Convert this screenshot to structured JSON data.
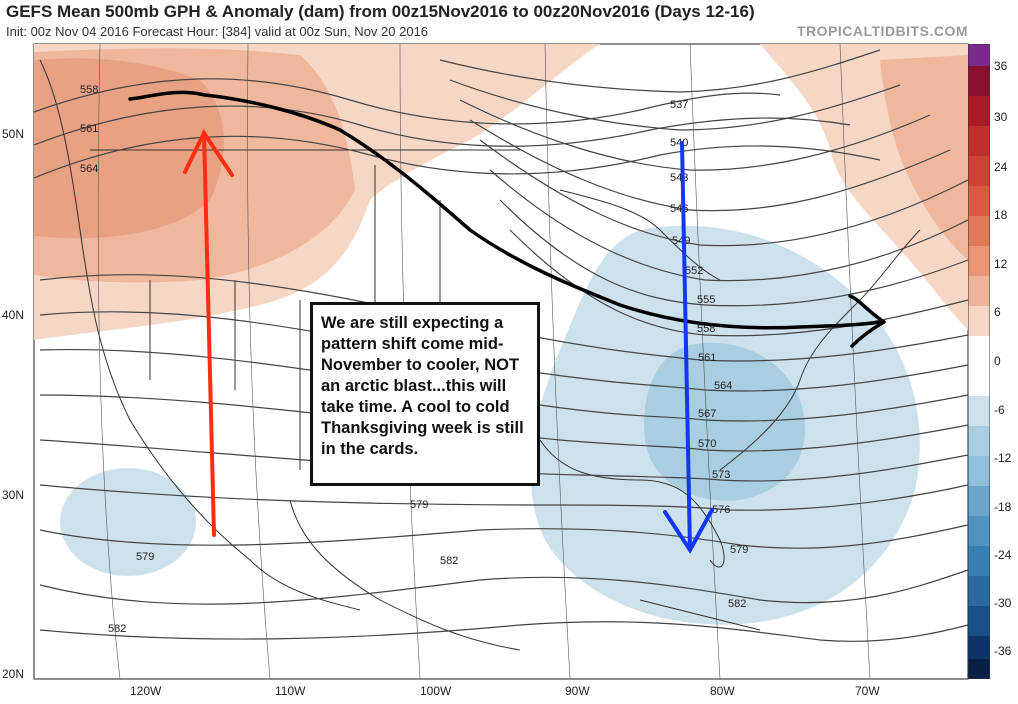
{
  "header": {
    "title": "GEFS Mean 500mb GPH & Anomaly (dam) from 00z15Nov2016 to 00z20Nov2016 (Days 12-16)",
    "subtitle": "Init: 00z Nov 04 2016   Forecast Hour: [384]   valid at 00z Sun, Nov 20 2016",
    "brand": "TROPICALTIDBITS.COM"
  },
  "axes": {
    "lat_labels": [
      "50N",
      "40N",
      "30N",
      "20N"
    ],
    "lon_labels": [
      "120W",
      "110W",
      "100W",
      "90W",
      "80W",
      "70W"
    ]
  },
  "contours": {
    "labels": [
      "558",
      "561",
      "564",
      "537",
      "540",
      "543",
      "546",
      "549",
      "552",
      "555",
      "558",
      "561",
      "564",
      "567",
      "570",
      "573",
      "576",
      "579",
      "579",
      "579",
      "582",
      "582",
      "582"
    ]
  },
  "colorbar": {
    "ticks": [
      "36",
      "30",
      "24",
      "18",
      "12",
      "6",
      "0",
      "-6",
      "-12",
      "-18",
      "-24",
      "-30",
      "-36"
    ],
    "colors": {
      "positive": [
        "#f6dccc",
        "#efb89c",
        "#e79272",
        "#dc6a4c",
        "#cc4434",
        "#b02626",
        "#8a1030",
        "#762080",
        "#5c2a8a"
      ],
      "negative": [
        "#cfe2ee",
        "#a9cde1",
        "#7fb2d2",
        "#4f93c0",
        "#2a71a8",
        "#17508a",
        "#0e3568",
        "#081f46"
      ]
    }
  },
  "annotation": {
    "text": "We are still expecting a pattern shift come mid-November to cooler, NOT an arctic blast...this will take time. A cool to cold Thanksgiving week is still in the cards."
  },
  "overlay_colors": {
    "red_arrow": "#ff2d12",
    "blue_arrow": "#1238f0",
    "black_path": "#000000",
    "warm_fill": "#f3c3ab",
    "cold_fill": "#a9cde1"
  }
}
